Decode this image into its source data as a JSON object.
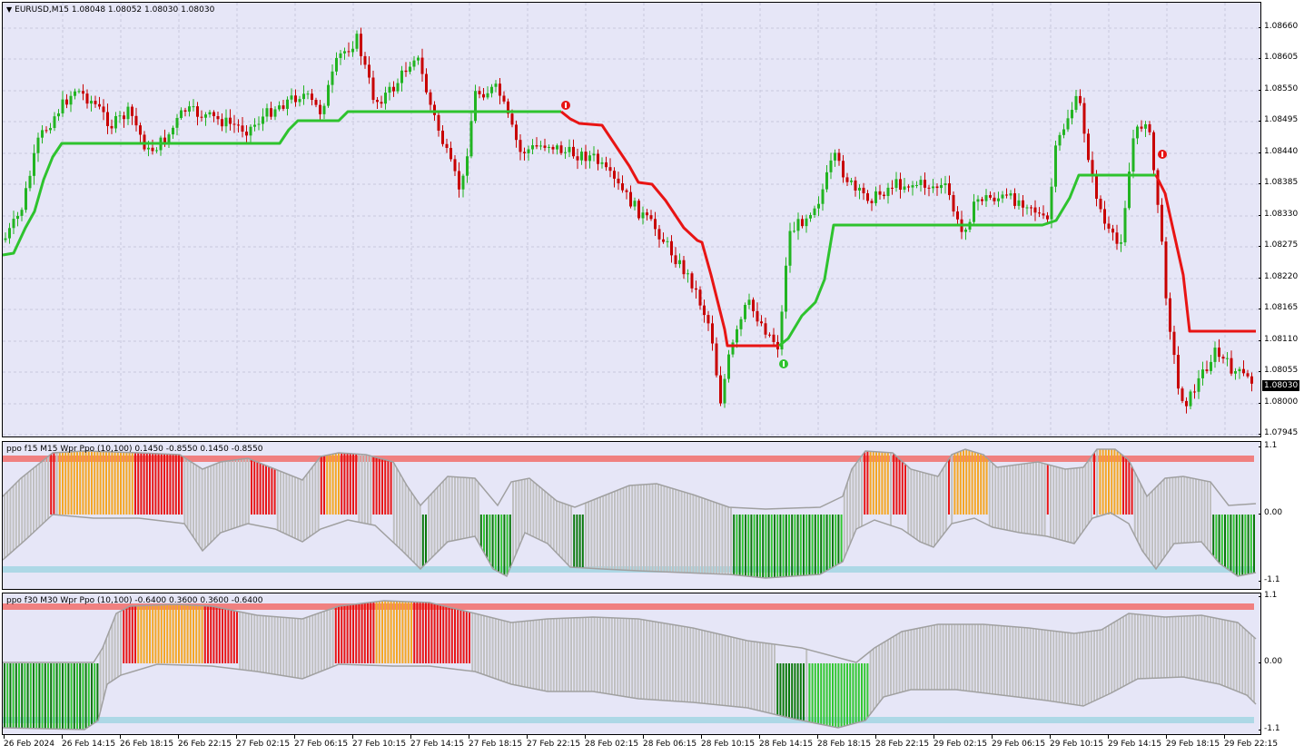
{
  "main": {
    "symbol_arrow": "▼",
    "title": "EURUSD,M15  1.08048 1.08052 1.08030 1.08030",
    "current_price": "1.08030",
    "price_ticks": [
      "1.08660",
      "1.08605",
      "1.08550",
      "1.08495",
      "1.08440",
      "1.08385",
      "1.08330",
      "1.08275",
      "1.08220",
      "1.08165",
      "1.08110",
      "1.08055",
      "1.08000",
      "1.07945"
    ]
  },
  "ppo1": {
    "title": "ppo f15 M15 Wpr Ppo (10,100) 0.1450 -0.8550 0.1450 -0.8550",
    "ticks": [
      "1.1",
      "0.00",
      "-1.1"
    ]
  },
  "ppo2": {
    "title": "ppo f30 M30 Wpr Ppo (10,100) -0.6400 0.3600 0.3600 -0.6400",
    "ticks": [
      "1.1",
      "0.00",
      "-1.1"
    ]
  },
  "time_axis": [
    "26 Feb 2024",
    "26 Feb 14:15",
    "26 Feb 18:15",
    "26 Feb 22:15",
    "27 Feb 02:15",
    "27 Feb 06:15",
    "27 Feb 10:15",
    "27 Feb 14:15",
    "27 Feb 18:15",
    "27 Feb 22:15",
    "28 Feb 02:15",
    "28 Feb 06:15",
    "28 Feb 10:15",
    "28 Feb 14:15",
    "28 Feb 18:15",
    "28 Feb 22:15",
    "29 Feb 02:15",
    "29 Feb 06:15",
    "29 Feb 10:15",
    "29 Feb 14:15",
    "29 Feb 18:15",
    "29 Feb 22:15"
  ],
  "colors": {
    "background": "#e6e6f7",
    "bull_candle": "#22b422",
    "bear_candle": "#c80000",
    "trend_up": "#2ec32e",
    "trend_down": "#e81414",
    "hist_gray": "#c0c0c0",
    "hist_orange": "#f5a623",
    "hist_red": "#e81414",
    "hist_green": "#32c832",
    "hist_darkgreen": "#0a780a",
    "upper_level": "#f08080",
    "lower_level": "#add8e6",
    "grid": "#c8c8dc"
  },
  "icons": {
    "sell_signal": "sell-arrow-icon",
    "buy_signal": "buy-arrow-icon"
  }
}
